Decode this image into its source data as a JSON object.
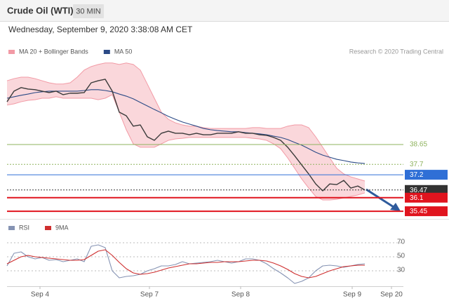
{
  "header": {
    "title": "Crude Oil (WTI)",
    "timeframe": "30 MIN",
    "timestamp": "Wednesday, September 9, 2020 3:38:08 AM CET"
  },
  "chart_data": [
    {
      "type": "line",
      "credit": "Research © 2020 Trading Central",
      "xlim": [
        0,
        56.5
      ],
      "ylim": [
        35.15,
        42.62
      ],
      "x": [
        0,
        1,
        2,
        3,
        4,
        5,
        6,
        7,
        8,
        9,
        10,
        11,
        12,
        13,
        14,
        15,
        16,
        17,
        18,
        19,
        20,
        21,
        22,
        23,
        24,
        25,
        26,
        27,
        28,
        29,
        30,
        31,
        32,
        33,
        34,
        35,
        36,
        37,
        38,
        39,
        40,
        41,
        42,
        43,
        44,
        45,
        46,
        47,
        48,
        49,
        50,
        51
      ],
      "series": [
        {
          "name": "MA 20 + Bollinger Bands",
          "color": "#f29aa5",
          "kind": "band",
          "upper": [
            41.71,
            41.81,
            41.88,
            41.88,
            41.81,
            41.71,
            41.61,
            41.55,
            41.55,
            41.61,
            41.88,
            42.22,
            42.39,
            42.49,
            42.56,
            42.56,
            42.49,
            42.56,
            42.49,
            42.22,
            41.55,
            40.87,
            40.2,
            39.86,
            39.69,
            39.59,
            39.53,
            39.53,
            39.46,
            39.42,
            39.42,
            39.42,
            39.42,
            39.42,
            39.42,
            39.46,
            39.46,
            39.42,
            39.42,
            39.42,
            39.53,
            39.59,
            39.59,
            39.46,
            39.02,
            38.52,
            38.01,
            37.51,
            37.24,
            37.1,
            37.0,
            36.9
          ],
          "lower": [
            40.54,
            40.6,
            40.7,
            40.77,
            40.8,
            40.87,
            40.87,
            40.94,
            40.87,
            40.87,
            40.87,
            40.87,
            40.87,
            40.8,
            40.87,
            41.04,
            40.2,
            39.36,
            38.68,
            38.52,
            38.52,
            38.52,
            38.68,
            38.85,
            38.92,
            38.95,
            38.99,
            38.99,
            38.99,
            38.99,
            38.99,
            38.99,
            38.99,
            38.99,
            38.99,
            38.95,
            38.92,
            38.85,
            38.68,
            38.45,
            38.01,
            37.51,
            37.0,
            36.56,
            36.16,
            35.99,
            35.99,
            36.02,
            36.09,
            36.16,
            36.23,
            36.33
          ]
        },
        {
          "name": "MA 50",
          "color": "#2b4a86",
          "kind": "line",
          "values": [
            40.87,
            40.94,
            41.01,
            41.07,
            41.14,
            41.18,
            41.21,
            41.21,
            41.21,
            41.21,
            41.21,
            41.24,
            41.28,
            41.28,
            41.24,
            41.18,
            41.07,
            40.97,
            40.84,
            40.67,
            40.5,
            40.33,
            40.17,
            40.0,
            39.86,
            39.73,
            39.63,
            39.53,
            39.42,
            39.36,
            39.32,
            39.29,
            39.26,
            39.26,
            39.22,
            39.19,
            39.16,
            39.12,
            39.05,
            38.99,
            38.89,
            38.75,
            38.62,
            38.45,
            38.28,
            38.14,
            38.04,
            37.94,
            37.88,
            37.81,
            37.77,
            37.74
          ]
        },
        {
          "color": "#3a3a3a",
          "kind": "line",
          "values": [
            40.7,
            41.21,
            41.38,
            41.31,
            41.28,
            41.21,
            41.14,
            41.21,
            41.04,
            41.11,
            41.11,
            41.14,
            41.61,
            41.71,
            41.78,
            41.21,
            40.2,
            40.03,
            39.53,
            39.59,
            39.02,
            38.85,
            39.19,
            39.29,
            39.19,
            39.19,
            39.12,
            39.19,
            39.12,
            39.12,
            39.19,
            39.19,
            39.19,
            39.26,
            39.19,
            39.19,
            39.12,
            39.09,
            38.99,
            38.85,
            38.52,
            38.11,
            37.67,
            37.24,
            36.76,
            36.43,
            36.76,
            36.73,
            36.93,
            36.56,
            36.66,
            36.47
          ]
        }
      ],
      "levels": [
        {
          "value": 38.65,
          "color": "#8fb35e",
          "style": "solid",
          "label_style": "text"
        },
        {
          "value": 37.7,
          "color": "#8fb35e",
          "style": "dotted",
          "label_style": "text"
        },
        {
          "value": 37.2,
          "color": "#2f6fd6",
          "style": "solid",
          "label_style": "box"
        },
        {
          "value": 36.47,
          "color": "#333333",
          "style": "dotted",
          "label_style": "box"
        },
        {
          "value": 36.1,
          "color": "#e0141e",
          "style": "thick",
          "label_style": "box"
        },
        {
          "value": 35.45,
          "color": "#e0141e",
          "style": "thick",
          "label_style": "box"
        }
      ]
    },
    {
      "type": "line",
      "xlim": [
        0,
        56.5
      ],
      "ylim": [
        8,
        86
      ],
      "yticks": [
        30,
        50,
        70
      ],
      "grid": true,
      "x": [
        0,
        1,
        2,
        3,
        4,
        5,
        6,
        7,
        8,
        9,
        10,
        11,
        12,
        13,
        14,
        15,
        16,
        17,
        18,
        19,
        20,
        21,
        22,
        23,
        24,
        25,
        26,
        27,
        28,
        29,
        30,
        31,
        32,
        33,
        34,
        35,
        36,
        37,
        38,
        39,
        40,
        41,
        42,
        43,
        44,
        45,
        46,
        47,
        48,
        49,
        50,
        51
      ],
      "xticks": [
        {
          "value": 4.7,
          "label": "Sep 4"
        },
        {
          "value": 20.3,
          "label": "Sep 7"
        },
        {
          "value": 33.3,
          "label": "Sep 8"
        },
        {
          "value": 49.2,
          "label": "Sep 9"
        },
        {
          "value": 54.8,
          "label": "Sep 20"
        }
      ],
      "series": [
        {
          "name": "RSI",
          "color": "#8593b3",
          "values": [
            37,
            55,
            57,
            50,
            47,
            49,
            45,
            46,
            43,
            45,
            47,
            43,
            65,
            67,
            63,
            30,
            20,
            22,
            23,
            25,
            30,
            33,
            37,
            37,
            39,
            43,
            40,
            41,
            42,
            43,
            45,
            43,
            41,
            43,
            47,
            47,
            45,
            40,
            33,
            27,
            20,
            12,
            15,
            20,
            30,
            37,
            38,
            37,
            35,
            37,
            39,
            40
          ]
        },
        {
          "name": "9MA",
          "color": "#cf2e2e",
          "values": [
            40,
            45,
            50,
            52,
            50,
            49,
            48,
            47,
            46,
            45,
            45,
            46,
            52,
            58,
            60,
            52,
            42,
            33,
            27,
            25,
            26,
            28,
            31,
            34,
            36,
            38,
            40,
            40,
            41,
            42,
            42,
            43,
            43,
            43,
            44,
            45,
            45,
            44,
            41,
            37,
            32,
            26,
            22,
            20,
            22,
            26,
            30,
            33,
            36,
            37,
            38,
            38
          ]
        }
      ]
    }
  ]
}
